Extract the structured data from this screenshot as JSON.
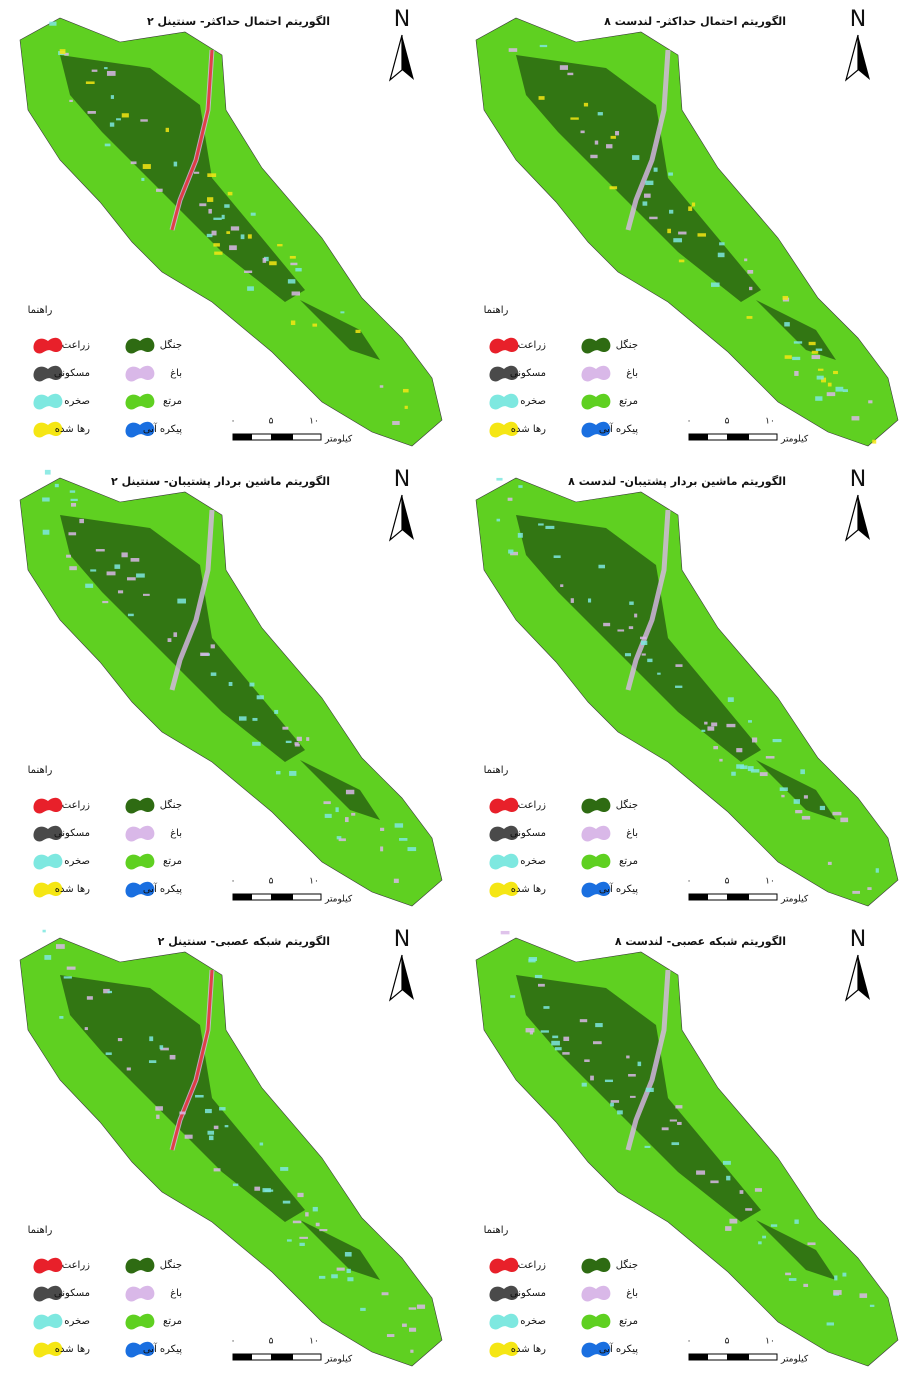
{
  "panels": [
    {
      "title": "الگوریتم احتمال حداکثر- سنتینل ۲"
    },
    {
      "title": "الگوریتم احتمال حداکثر- لندست ۸"
    },
    {
      "title": "الگوریتم ماشین بردار پشتیبان- سنتینل ۲"
    },
    {
      "title": "الگوریتم ماشین بردار پشتیبان- لندست ۸"
    },
    {
      "title": "الگوریتم شبکه عصبی- سنتینل ۲"
    },
    {
      "title": "الگوریتم شبکه عصبی- لندست ۸"
    }
  ],
  "north": "N",
  "legend": {
    "title": "راهنما",
    "items": [
      {
        "label": "جنگل",
        "color": "#2e6b12"
      },
      {
        "label": "زراعت",
        "color": "#e8202a"
      },
      {
        "label": "باغ",
        "color": "#d9b8e8"
      },
      {
        "label": "مسکونی",
        "color": "#4a4a4a"
      },
      {
        "label": "مرتع",
        "color": "#5fd021"
      },
      {
        "label": "صخره",
        "color": "#7ee8e0"
      },
      {
        "label": "پیکره آبی",
        "color": "#1a6fe0"
      },
      {
        "label": "رها شده",
        "color": "#f5e614"
      }
    ]
  },
  "scale": {
    "labels": [
      "۰",
      "۵",
      "۱۰"
    ],
    "unit": "کیلومتر"
  }
}
